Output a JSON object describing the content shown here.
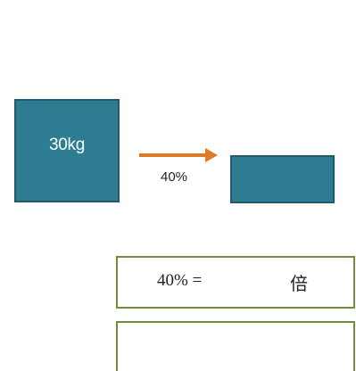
{
  "diagram": {
    "big_box_label": "30kg",
    "arrow_label": "40%",
    "colors": {
      "box_fill": "#2e7c91",
      "box_border": "#24596a",
      "arrow": "#e07a26",
      "answer_border": "#6f8f3a"
    }
  },
  "answer": {
    "left_text": "40% =",
    "right_text": "倍"
  }
}
